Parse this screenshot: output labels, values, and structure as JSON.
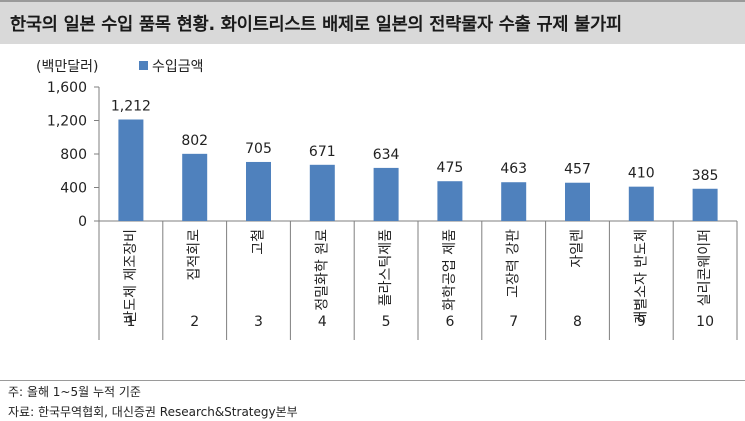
{
  "header": {
    "title": "한국의 일본 수입 품목 현황. 화이트리스트 배제로 일본의 전략물자 수출 규제 불가피"
  },
  "chart_data": {
    "type": "bar",
    "ylabel": "(백만달러)",
    "ylim": [
      0,
      1600
    ],
    "yticks": [
      0,
      400,
      800,
      1200,
      1600
    ],
    "ytick_labels": [
      "0",
      "400",
      "800",
      "1,200",
      "1,600"
    ],
    "legend": "수입금액",
    "legend_position": "top-left",
    "bar_color": "#4f81bd",
    "categories": [
      "반도체 제조장비",
      "집적회로",
      "고철",
      "정밀화학 원료",
      "플라스틱제품",
      "화학공업 제품",
      "고장력 강판",
      "자일렌",
      "개별소자 반도체",
      "실리콘웨이퍼"
    ],
    "ranks": [
      "1",
      "2",
      "3",
      "4",
      "5",
      "6",
      "7",
      "8",
      "9",
      "10"
    ],
    "values": [
      1212,
      802,
      705,
      671,
      634,
      475,
      463,
      457,
      410,
      385
    ],
    "value_labels": [
      "1,212",
      "802",
      "705",
      "671",
      "634",
      "475",
      "463",
      "457",
      "410",
      "385"
    ]
  },
  "notes": {
    "note1": "주: 올해 1~5월 누적 기준",
    "note2": "자료: 한국무역협회, 대신증권 Research&Strategy본부"
  }
}
